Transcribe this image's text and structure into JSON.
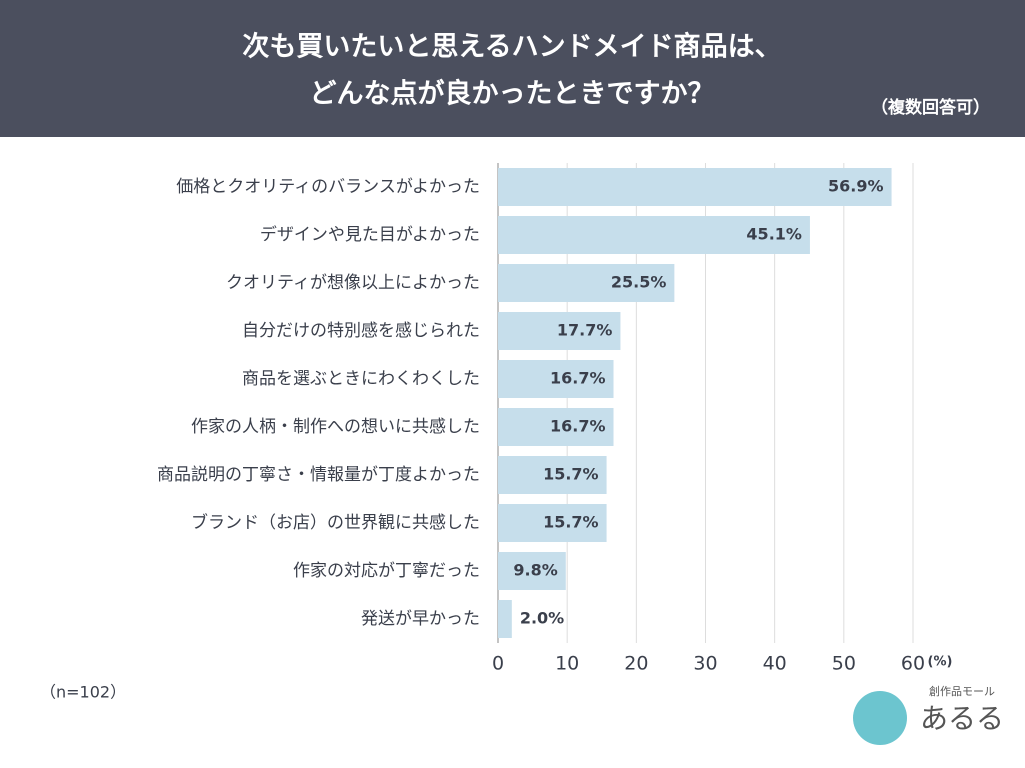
{
  "chart_data": {
    "type": "hbar",
    "title": [
      "次も買いたいと思えるハンドメイド商品は、",
      "どんな点が良かったときですか？"
    ],
    "subtitle": "（複数回答可）",
    "categories": [
      "価格とクオリティのバランスがよかった",
      "デザインや見た目がよかった",
      "クオリティが想像以上によかった",
      "自分だけの特別感を感じられた",
      "商品を選ぶときにわくわくした",
      "作家の人柄・制作への想いに共感した",
      "商品説明の丁寧さ・情報量が丁度よかった",
      "ブランド（お店）の世界観に共感した",
      "作家の対応が丁寧だった",
      "発送が早かった"
    ],
    "values": [
      56.9,
      45.1,
      25.5,
      17.7,
      16.7,
      16.7,
      15.7,
      15.7,
      9.8,
      2.0
    ],
    "value_labels": [
      "56.9%",
      "45.1%",
      "25.5%",
      "17.7%",
      "16.7%",
      "16.7%",
      "15.7%",
      "15.7%",
      "9.8%",
      "2.0%"
    ],
    "color": "#c6deeb",
    "xlim": [
      0,
      60
    ],
    "xticks": [
      0,
      10,
      20,
      30,
      40,
      50,
      60
    ],
    "x_unit": "(%)",
    "grid": true,
    "note": "（n=102）",
    "logo": {
      "tagline": "創作品モール",
      "name": "あるる"
    }
  }
}
